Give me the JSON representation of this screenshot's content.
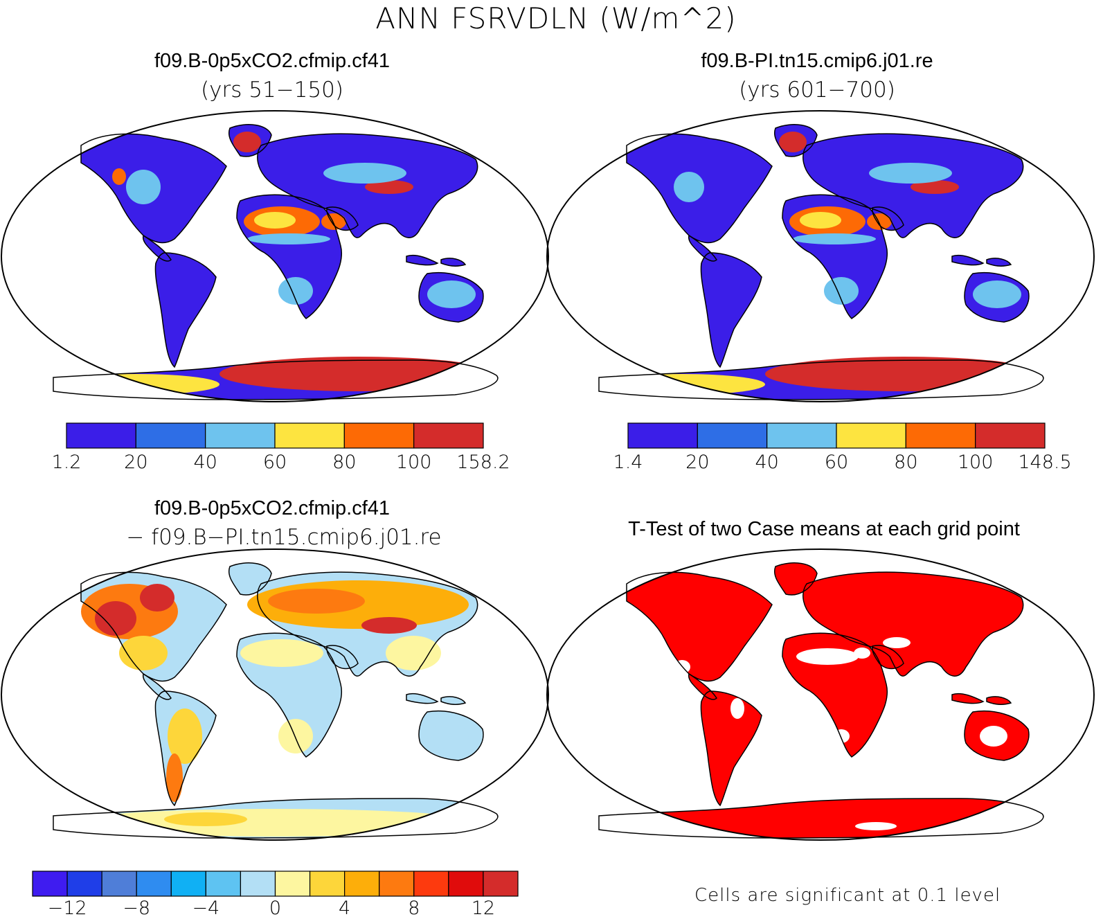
{
  "figure": {
    "title": "ANN FSRVDLN (W/m^2)"
  },
  "panels": [
    {
      "title": "f09.B-0p5xCO2.cfmip.cf41",
      "subtitle": "(yrs 51−150)",
      "colorbar": {
        "colors": [
          "#3b1ee8",
          "#2e6ee6",
          "#6ec3ee",
          "#fde440",
          "#fd6a05",
          "#d42c2b"
        ],
        "labels": [
          "1.2",
          "20",
          "40",
          "60",
          "80",
          "100",
          "158.2"
        ]
      }
    },
    {
      "title": "f09.B-PI.tn15.cmip6.j01.re",
      "subtitle": "(yrs 601−700)",
      "colorbar": {
        "colors": [
          "#3b1ee8",
          "#2e6ee6",
          "#6ec3ee",
          "#fde440",
          "#fd6a05",
          "#d42c2b"
        ],
        "labels": [
          "1.4",
          "20",
          "40",
          "60",
          "80",
          "100",
          "148.5"
        ]
      }
    },
    {
      "title": "f09.B-0p5xCO2.cfmip.cf41",
      "subtitle": "− f09.B−PI.tn15.cmip6.j01.re",
      "colorbar": {
        "colors": [
          "#3f1cf0",
          "#1f3ee8",
          "#4f7ed8",
          "#2f8cf0",
          "#10b0f4",
          "#5ec3f2",
          "#b3dff5",
          "#fdf6a0",
          "#fdd63a",
          "#fdae0a",
          "#fd7a10",
          "#fd3a0e",
          "#e00c0c",
          "#d42c2b"
        ],
        "labels": [
          "−12",
          "−8",
          "−4",
          "0",
          "4",
          "8",
          "12"
        ]
      }
    },
    {
      "title": "T-Test of two Case means at each grid point",
      "note": "Cells are significant at 0.1 level"
    }
  ]
}
